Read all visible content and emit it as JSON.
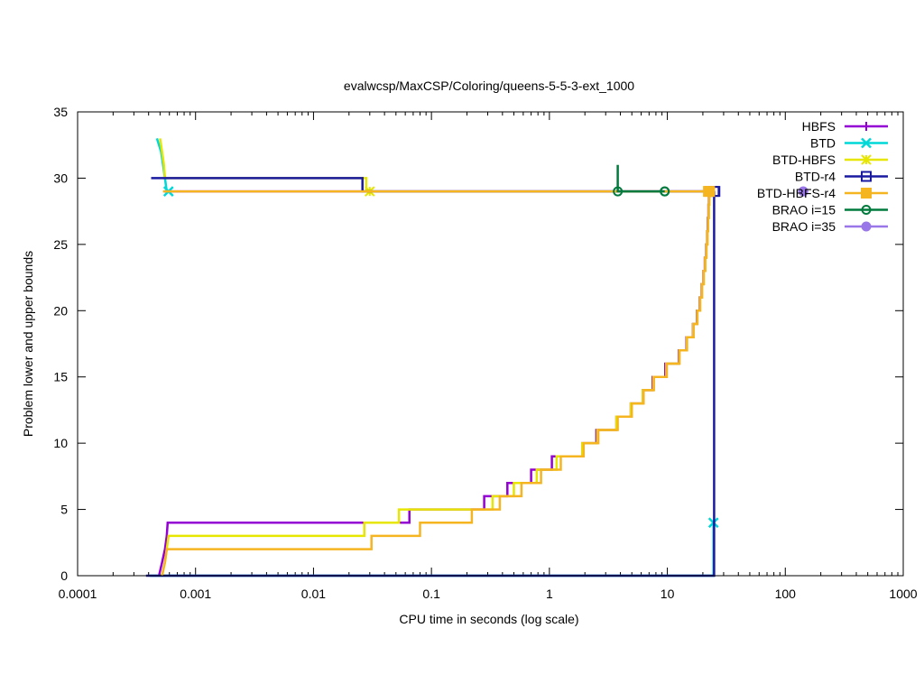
{
  "chart_data": {
    "type": "line",
    "title": "evalwcsp/MaxCSP/Coloring/queens-5-5-3-ext_1000",
    "xlabel": "CPU time in seconds (log scale)",
    "ylabel": "Problem lower and upper bounds",
    "xscale": "log",
    "xlim": [
      0.0001,
      1000
    ],
    "ylim": [
      0,
      35
    ],
    "xticks": [
      {
        "value": 0.0001,
        "label": "0.0001"
      },
      {
        "value": 0.001,
        "label": "0.001"
      },
      {
        "value": 0.01,
        "label": "0.01"
      },
      {
        "value": 0.1,
        "label": "0.1"
      },
      {
        "value": 1,
        "label": "1"
      },
      {
        "value": 10,
        "label": "10"
      },
      {
        "value": 100,
        "label": "100"
      },
      {
        "value": 1000,
        "label": "1000"
      }
    ],
    "yticks": [
      {
        "value": 0,
        "label": "0"
      },
      {
        "value": 5,
        "label": "5"
      },
      {
        "value": 10,
        "label": "10"
      },
      {
        "value": 15,
        "label": "15"
      },
      {
        "value": 20,
        "label": "20"
      },
      {
        "value": 25,
        "label": "25"
      },
      {
        "value": 30,
        "label": "30"
      },
      {
        "value": 35,
        "label": "35"
      }
    ],
    "legend_position": "top-right",
    "series": [
      {
        "name": "HBFS",
        "color": "#9400d3",
        "marker": "plus",
        "lower": [
          [
            0.00049,
            0
          ],
          [
            0.00052,
            1
          ],
          [
            0.00055,
            2
          ],
          [
            0.00057,
            3
          ],
          [
            0.00058,
            4
          ],
          [
            0.065,
            4
          ],
          [
            0.065,
            5
          ],
          [
            0.28,
            5
          ],
          [
            0.28,
            6
          ],
          [
            0.44,
            6
          ],
          [
            0.44,
            7
          ],
          [
            0.7,
            7
          ],
          [
            0.7,
            8
          ],
          [
            1.05,
            8
          ],
          [
            1.05,
            9
          ],
          [
            1.9,
            9
          ],
          [
            1.9,
            10
          ],
          [
            2.5,
            10
          ],
          [
            2.5,
            11
          ],
          [
            3.7,
            11
          ],
          [
            3.7,
            12
          ],
          [
            4.9,
            12
          ],
          [
            4.9,
            13
          ],
          [
            6.2,
            13
          ],
          [
            6.2,
            14
          ],
          [
            7.5,
            14
          ],
          [
            7.5,
            15
          ],
          [
            9.6,
            15
          ],
          [
            9.6,
            16
          ],
          [
            12.5,
            16
          ],
          [
            12.5,
            17
          ],
          [
            14.5,
            17
          ],
          [
            14.5,
            18
          ],
          [
            16.5,
            18
          ],
          [
            16.5,
            19
          ],
          [
            17.8,
            19
          ],
          [
            17.8,
            20
          ],
          [
            18.8,
            20
          ],
          [
            18.8,
            21
          ],
          [
            19.5,
            21
          ],
          [
            19.5,
            22
          ],
          [
            20.2,
            22
          ],
          [
            20.2,
            23
          ],
          [
            20.8,
            23
          ],
          [
            20.8,
            24
          ],
          [
            21.3,
            24
          ],
          [
            21.3,
            25
          ],
          [
            21.7,
            25
          ],
          [
            21.7,
            26
          ],
          [
            22.0,
            26
          ],
          [
            22.0,
            27
          ],
          [
            22.3,
            27
          ],
          [
            22.3,
            28
          ],
          [
            22.5,
            28
          ],
          [
            22.5,
            29
          ],
          [
            22.6,
            29
          ]
        ],
        "upper": [
          [
            0.00054,
            29
          ],
          [
            22.6,
            29
          ]
        ]
      },
      {
        "name": "BTD",
        "color": "#00d7d7",
        "marker": "x",
        "lower": [
          [
            0.00041,
            0
          ],
          [
            24.6,
            0
          ],
          [
            24.6,
            4
          ]
        ],
        "upper": [
          [
            0.00047,
            33
          ],
          [
            0.00051,
            32
          ],
          [
            0.00053,
            31
          ],
          [
            0.00055,
            30
          ],
          [
            0.00057,
            29
          ],
          [
            0.00059,
            29
          ]
        ]
      },
      {
        "name": "BTD-HBFS",
        "color": "#e6e600",
        "marker": "star",
        "lower": [
          [
            0.00052,
            0
          ],
          [
            0.00055,
            1
          ],
          [
            0.00057,
            2
          ],
          [
            0.00059,
            3
          ],
          [
            0.027,
            3
          ],
          [
            0.027,
            4
          ],
          [
            0.053,
            4
          ],
          [
            0.053,
            5
          ],
          [
            0.33,
            5
          ],
          [
            0.33,
            6
          ],
          [
            0.5,
            6
          ],
          [
            0.5,
            7
          ],
          [
            0.78,
            7
          ],
          [
            0.78,
            8
          ],
          [
            1.15,
            8
          ],
          [
            1.15,
            9
          ],
          [
            1.9,
            9
          ],
          [
            1.9,
            10
          ],
          [
            2.55,
            10
          ],
          [
            2.55,
            11
          ],
          [
            3.7,
            11
          ],
          [
            3.7,
            12
          ],
          [
            4.9,
            12
          ],
          [
            4.9,
            13
          ],
          [
            6.2,
            13
          ],
          [
            6.2,
            14
          ],
          [
            7.6,
            14
          ],
          [
            7.6,
            15
          ],
          [
            9.8,
            15
          ],
          [
            9.8,
            16
          ],
          [
            12.6,
            16
          ],
          [
            12.6,
            17
          ],
          [
            14.6,
            17
          ],
          [
            14.6,
            18
          ],
          [
            16.6,
            18
          ],
          [
            16.6,
            19
          ],
          [
            17.9,
            19
          ],
          [
            17.9,
            20
          ],
          [
            18.9,
            20
          ],
          [
            18.9,
            21
          ],
          [
            19.6,
            21
          ],
          [
            19.6,
            22
          ],
          [
            20.3,
            22
          ],
          [
            20.3,
            23
          ],
          [
            20.9,
            23
          ],
          [
            20.9,
            24
          ],
          [
            21.4,
            24
          ],
          [
            21.4,
            25
          ],
          [
            21.8,
            25
          ],
          [
            21.8,
            26
          ],
          [
            22.1,
            26
          ],
          [
            22.1,
            27
          ],
          [
            22.4,
            27
          ],
          [
            22.4,
            28
          ],
          [
            22.6,
            28
          ],
          [
            22.6,
            29
          ],
          [
            22.7,
            29
          ]
        ],
        "upper": [
          [
            0.0005,
            33
          ],
          [
            0.00052,
            32
          ],
          [
            0.00054,
            31
          ],
          [
            0.00055,
            30
          ],
          [
            0.028,
            30
          ],
          [
            0.028,
            29
          ],
          [
            0.03,
            29
          ]
        ]
      },
      {
        "name": "BTD-r4",
        "color": "#1a1aa0",
        "marker": "open-square",
        "lower": [
          [
            0.00038,
            0
          ],
          [
            24.9,
            0
          ],
          [
            24.9,
            29
          ]
        ],
        "upper": [
          [
            0.00042,
            30
          ],
          [
            0.026,
            30
          ],
          [
            0.026,
            29
          ],
          [
            25.3,
            29
          ]
        ]
      },
      {
        "name": "BTD-HBFS-r4",
        "color": "#f5b521",
        "marker": "filled-square",
        "lower": [
          [
            0.00052,
            0
          ],
          [
            0.00055,
            1
          ],
          [
            0.00057,
            2
          ],
          [
            0.031,
            2
          ],
          [
            0.031,
            3
          ],
          [
            0.08,
            3
          ],
          [
            0.08,
            4
          ],
          [
            0.22,
            4
          ],
          [
            0.22,
            5
          ],
          [
            0.38,
            5
          ],
          [
            0.38,
            6
          ],
          [
            0.58,
            6
          ],
          [
            0.58,
            7
          ],
          [
            0.85,
            7
          ],
          [
            0.85,
            8
          ],
          [
            1.25,
            8
          ],
          [
            1.25,
            9
          ],
          [
            1.95,
            9
          ],
          [
            1.95,
            10
          ],
          [
            2.6,
            10
          ],
          [
            2.6,
            11
          ],
          [
            3.8,
            11
          ],
          [
            3.8,
            12
          ],
          [
            5.0,
            12
          ],
          [
            5.0,
            13
          ],
          [
            6.3,
            13
          ],
          [
            6.3,
            14
          ],
          [
            7.7,
            14
          ],
          [
            7.7,
            15
          ],
          [
            9.9,
            15
          ],
          [
            9.9,
            16
          ],
          [
            12.7,
            16
          ],
          [
            12.7,
            17
          ],
          [
            14.7,
            17
          ],
          [
            14.7,
            18
          ],
          [
            16.7,
            18
          ],
          [
            16.7,
            19
          ],
          [
            18.0,
            19
          ],
          [
            18.0,
            20
          ],
          [
            19.0,
            20
          ],
          [
            19.0,
            21
          ],
          [
            19.7,
            21
          ],
          [
            19.7,
            22
          ],
          [
            20.4,
            22
          ],
          [
            20.4,
            23
          ],
          [
            21.0,
            23
          ],
          [
            21.0,
            24
          ],
          [
            21.5,
            24
          ],
          [
            21.5,
            25
          ],
          [
            21.9,
            25
          ],
          [
            21.9,
            26
          ],
          [
            22.2,
            26
          ],
          [
            22.2,
            27
          ],
          [
            22.5,
            27
          ],
          [
            22.5,
            28
          ],
          [
            22.7,
            28
          ],
          [
            22.7,
            29
          ],
          [
            22.8,
            29
          ]
        ],
        "upper": [
          [
            0.00053,
            29
          ],
          [
            22.3,
            29
          ]
        ]
      },
      {
        "name": "BRAO i=15",
        "color": "#007a3d",
        "marker": "open-circle",
        "lower": [],
        "upper": [
          [
            3.8,
            31
          ],
          [
            3.8,
            29
          ],
          [
            9.5,
            29
          ]
        ],
        "markers": [
          [
            3.8,
            29
          ],
          [
            9.5,
            29
          ]
        ]
      },
      {
        "name": "BRAO i=35",
        "color": "#9a77e8",
        "marker": "filled-circle",
        "lower": [],
        "upper": [
          [
            142,
            29
          ]
        ],
        "markers": [
          [
            142,
            29
          ]
        ]
      }
    ]
  }
}
